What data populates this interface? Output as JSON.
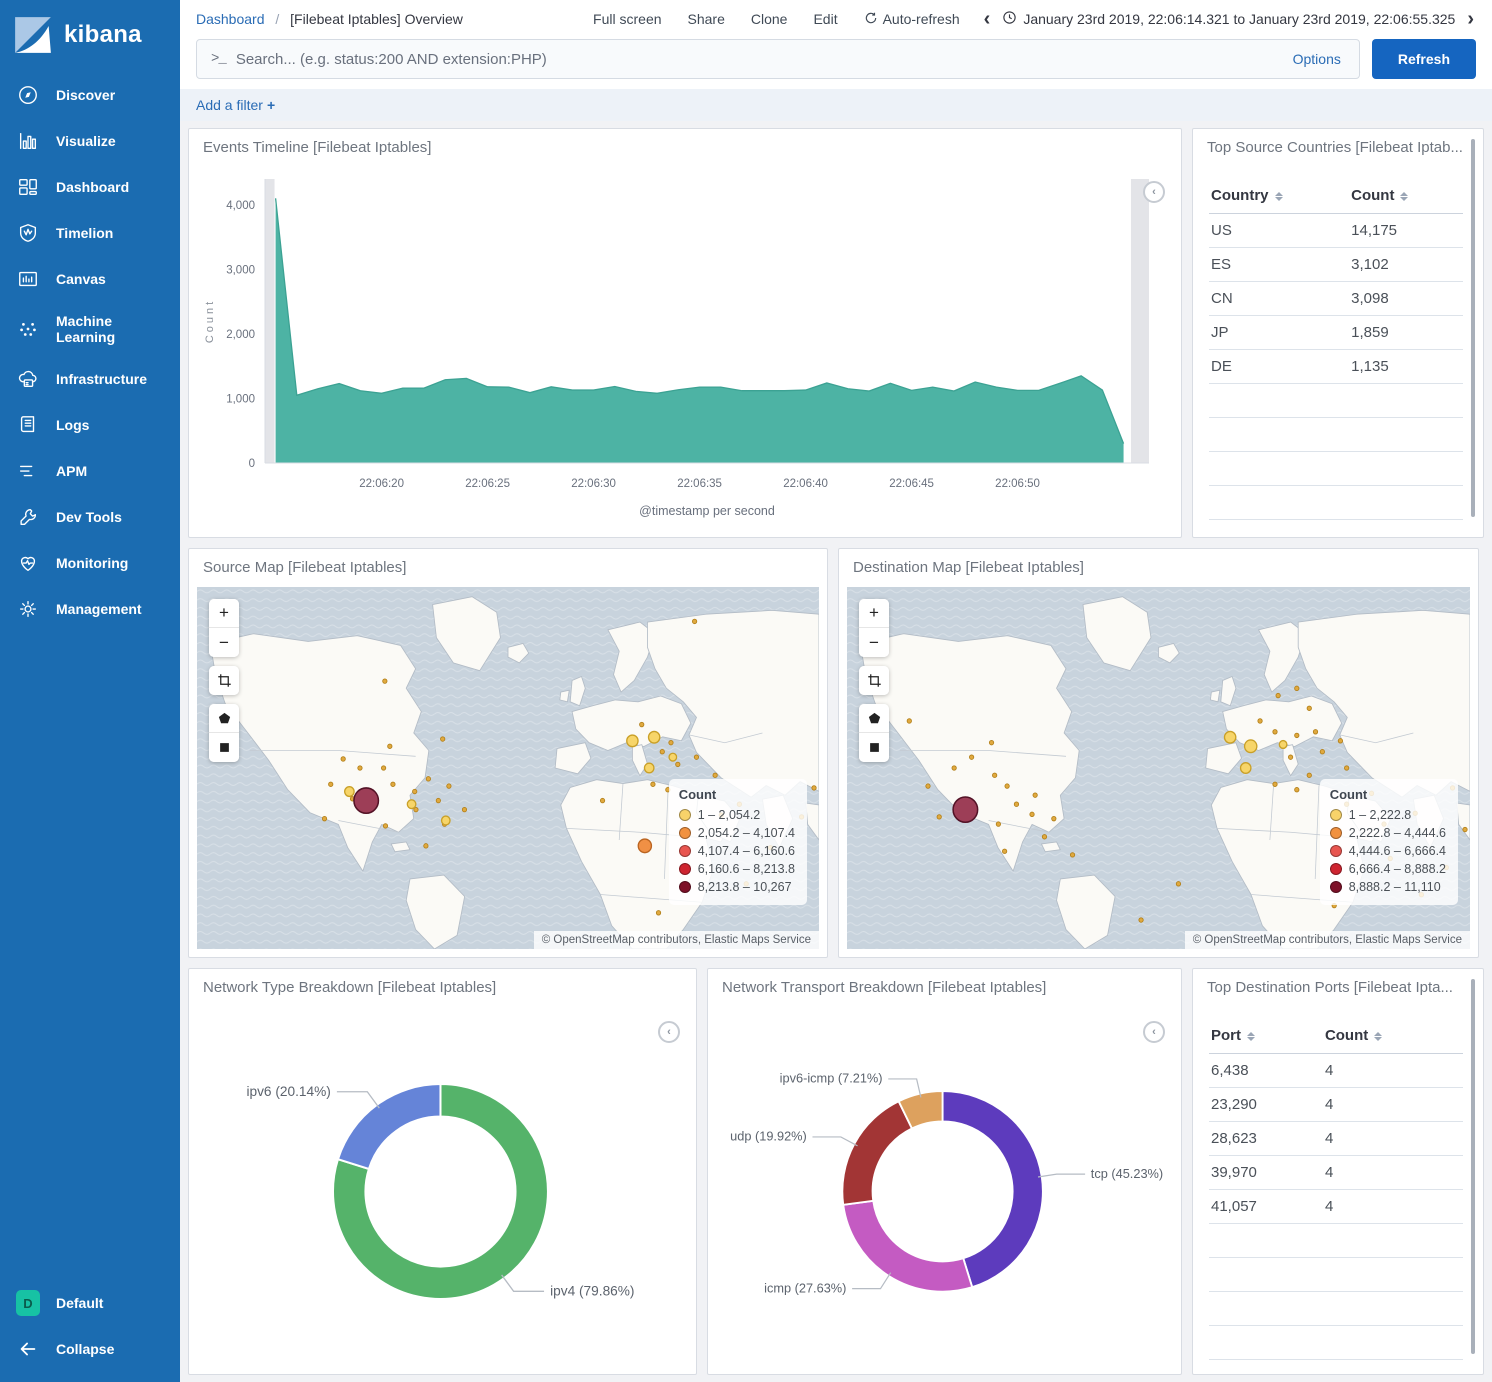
{
  "app": {
    "logo_text": "kibana"
  },
  "sidebar": {
    "items": [
      {
        "label": "Discover",
        "icon": "discover"
      },
      {
        "label": "Visualize",
        "icon": "visualize"
      },
      {
        "label": "Dashboard",
        "icon": "dashboard"
      },
      {
        "label": "Timelion",
        "icon": "timelion"
      },
      {
        "label": "Canvas",
        "icon": "canvas"
      },
      {
        "label": "Machine Learning",
        "icon": "machine-learning"
      },
      {
        "label": "Infrastructure",
        "icon": "infrastructure"
      },
      {
        "label": "Logs",
        "icon": "logs"
      },
      {
        "label": "APM",
        "icon": "apm"
      },
      {
        "label": "Dev Tools",
        "icon": "dev-tools"
      },
      {
        "label": "Monitoring",
        "icon": "monitoring"
      },
      {
        "label": "Management",
        "icon": "management"
      }
    ],
    "footer": {
      "default_label": "Default",
      "default_badge": "D",
      "collapse_label": "Collapse"
    }
  },
  "topbar": {
    "breadcrumb": {
      "root": "Dashboard",
      "separator": "/",
      "current": "[Filebeat Iptables] Overview"
    },
    "menu": [
      "Full screen",
      "Share",
      "Clone",
      "Edit"
    ],
    "auto_refresh_label": "Auto-refresh",
    "time_range": "January 23rd 2019, 22:06:14.321 to January 23rd 2019, 22:06:55.325",
    "prev_arrow": "‹",
    "next_arrow": "›",
    "search": {
      "placeholder": "Search... (e.g. status:200 AND extension:PHP)",
      "prompt": ">_",
      "options_label": "Options",
      "refresh_label": "Refresh"
    }
  },
  "filter_bar": {
    "add_filter_label": "Add a filter",
    "plus": "+"
  },
  "panels": {
    "events_timeline": {
      "title": "Events Timeline [Filebeat Iptables]"
    },
    "top_source_countries": {
      "title": "Top Source Countries [Filebeat Iptab...",
      "columns": [
        "Country",
        "Count"
      ],
      "rows": [
        [
          "US",
          "14,175"
        ],
        [
          "ES",
          "3,102"
        ],
        [
          "CN",
          "3,098"
        ],
        [
          "JP",
          "1,859"
        ],
        [
          "DE",
          "1,135"
        ]
      ],
      "empty_rows": 4
    },
    "source_map": {
      "title": "Source Map [Filebeat Iptables]",
      "legend_title": "Count",
      "legend": [
        {
          "range": "1 – 2,054.2",
          "color": "#f8d36a"
        },
        {
          "range": "2,054.2 – 4,107.4",
          "color": "#f1913f"
        },
        {
          "range": "4,107.4 – 6,160.6",
          "color": "#e8554f"
        },
        {
          "range": "6,160.6 – 8,213.8",
          "color": "#ce2430"
        },
        {
          "range": "8,213.8 – 10,267",
          "color": "#7d1128"
        }
      ],
      "attribution": "© OpenStreetMap contributors, Elastic Maps Service",
      "controls": [
        "zoom-in",
        "zoom-out",
        "crop",
        "polygon",
        "rectangle"
      ]
    },
    "destination_map": {
      "title": "Destination Map [Filebeat Iptables]",
      "legend_title": "Count",
      "legend": [
        {
          "range": "1 – 2,222.8",
          "color": "#f8d36a"
        },
        {
          "range": "2,222.8 – 4,444.6",
          "color": "#f1913f"
        },
        {
          "range": "4,444.6 – 6,666.4",
          "color": "#e8554f"
        },
        {
          "range": "6,666.4 – 8,888.2",
          "color": "#ce2430"
        },
        {
          "range": "8,888.2 – 11,110",
          "color": "#7d1128"
        }
      ],
      "attribution": "© OpenStreetMap contributors, Elastic Maps Service",
      "controls": [
        "zoom-in",
        "zoom-out",
        "crop",
        "polygon",
        "rectangle"
      ]
    },
    "network_type": {
      "title": "Network Type Breakdown [Filebeat Iptables]"
    },
    "network_transport": {
      "title": "Network Transport Breakdown [Filebeat Iptables]"
    },
    "top_destination_ports": {
      "title": "Top Destination Ports [Filebeat Ipta...",
      "columns": [
        "Port",
        "Count"
      ],
      "rows": [
        [
          "6,438",
          "4"
        ],
        [
          "23,290",
          "4"
        ],
        [
          "28,623",
          "4"
        ],
        [
          "39,970",
          "4"
        ],
        [
          "41,057",
          "4"
        ]
      ],
      "empty_rows": 4
    }
  },
  "chart_data": {
    "events_timeline": {
      "type": "area",
      "title": "Events Timeline [Filebeat Iptables]",
      "xlabel": "@timestamp per second",
      "ylabel": "Count",
      "color": "#4db3a4",
      "stroke": "#3ca293",
      "x_domain_seconds": [
        14.5,
        56.2
      ],
      "x_start_second": 15,
      "values": [
        4100,
        1050,
        1150,
        1230,
        1120,
        1080,
        1160,
        1160,
        1290,
        1310,
        1180,
        1175,
        1090,
        1180,
        1130,
        1130,
        1185,
        1110,
        1080,
        1135,
        1175,
        1175,
        1120,
        1120,
        1120,
        1130,
        1240,
        1150,
        1115,
        1235,
        1125,
        1175,
        1115,
        1255,
        1175,
        1125,
        1125,
        1235,
        1350,
        1130,
        300
      ],
      "ylim": [
        0,
        4400
      ],
      "y_ticks": [
        {
          "v": 0,
          "label": "0"
        },
        {
          "v": 1000,
          "label": "1,000"
        },
        {
          "v": 2000,
          "label": "2,000"
        },
        {
          "v": 3000,
          "label": "3,000"
        },
        {
          "v": 4000,
          "label": "4,000"
        }
      ],
      "x_ticks": [
        {
          "sec": 20,
          "label": "22:06:20"
        },
        {
          "sec": 25,
          "label": "22:06:25"
        },
        {
          "sec": 30,
          "label": "22:06:30"
        },
        {
          "sec": 35,
          "label": "22:06:35"
        },
        {
          "sec": 40,
          "label": "22:06:40"
        },
        {
          "sec": 45,
          "label": "22:06:45"
        },
        {
          "sec": 50,
          "label": "22:06:50"
        }
      ],
      "partial_bars": [
        [
          14.5,
          14.95
        ],
        [
          55.35,
          56.2
        ]
      ],
      "grid": false
    },
    "network_type": {
      "type": "pie",
      "title": "Network Type Breakdown [Filebeat Iptables]",
      "slices": [
        {
          "label": "ipv4",
          "pct": 79.86,
          "display": "ipv4 (79.86%)",
          "color": "#55b36a"
        },
        {
          "label": "ipv6",
          "pct": 20.14,
          "display": "ipv6 (20.14%)",
          "color": "#6584d8"
        }
      ]
    },
    "network_transport": {
      "type": "pie",
      "title": "Network Transport Breakdown [Filebeat Iptables]",
      "slices": [
        {
          "label": "tcp",
          "pct": 45.23,
          "display": "tcp (45.23%)",
          "color": "#5d3bbd"
        },
        {
          "label": "icmp",
          "pct": 27.63,
          "display": "icmp (27.63%)",
          "color": "#c45bc2"
        },
        {
          "label": "udp",
          "pct": 19.92,
          "display": "udp (19.92%)",
          "color": "#a23535"
        },
        {
          "label": "ipv6-icmp",
          "pct": 7.21,
          "display": "ipv6-icmp (7.21%)",
          "color": "#dda15e"
        }
      ]
    },
    "source_map": {
      "type": "map",
      "large_markers": [
        [
          0.272,
          0.59,
          13
        ]
      ],
      "orange_markers": [
        [
          0.72,
          0.715,
          7
        ]
      ],
      "medium_markers": [
        [
          0.7,
          0.425,
          6
        ],
        [
          0.735,
          0.415,
          6
        ],
        [
          0.727,
          0.5,
          5
        ],
        [
          0.245,
          0.565,
          5
        ],
        [
          0.345,
          0.6,
          4.5
        ],
        [
          0.4,
          0.645,
          4.5
        ],
        [
          0.765,
          0.47,
          4
        ]
      ],
      "small_markers": [
        [
          0.215,
          0.545
        ],
        [
          0.205,
          0.64
        ],
        [
          0.235,
          0.475
        ],
        [
          0.262,
          0.5
        ],
        [
          0.3,
          0.5
        ],
        [
          0.315,
          0.545
        ],
        [
          0.35,
          0.565
        ],
        [
          0.352,
          0.615
        ],
        [
          0.303,
          0.66
        ],
        [
          0.25,
          0.585
        ],
        [
          0.372,
          0.53
        ],
        [
          0.405,
          0.55
        ],
        [
          0.388,
          0.59
        ],
        [
          0.43,
          0.615
        ],
        [
          0.398,
          0.655
        ],
        [
          0.368,
          0.715
        ],
        [
          0.31,
          0.44
        ],
        [
          0.395,
          0.42
        ],
        [
          0.302,
          0.26
        ],
        [
          0.8,
          0.095
        ],
        [
          0.715,
          0.38
        ],
        [
          0.748,
          0.455
        ],
        [
          0.762,
          0.43
        ],
        [
          0.773,
          0.49
        ],
        [
          0.733,
          0.545
        ],
        [
          0.757,
          0.56
        ],
        [
          0.803,
          0.47
        ],
        [
          0.833,
          0.52
        ],
        [
          0.843,
          0.63
        ],
        [
          0.872,
          0.6
        ],
        [
          0.922,
          0.72
        ],
        [
          0.972,
          0.635
        ],
        [
          0.883,
          0.82
        ],
        [
          0.742,
          0.9
        ],
        [
          0.992,
          0.555
        ],
        [
          0.652,
          0.59
        ]
      ]
    },
    "destination_map": {
      "type": "map",
      "large_markers": [
        [
          0.19,
          0.615,
          13
        ]
      ],
      "orange_markers": [],
      "medium_markers": [
        [
          0.615,
          0.415,
          6
        ],
        [
          0.648,
          0.44,
          6.5
        ],
        [
          0.64,
          0.5,
          5.5
        ],
        [
          0.7,
          0.435,
          4
        ]
      ],
      "small_markers": [
        [
          0.13,
          0.55
        ],
        [
          0.148,
          0.635
        ],
        [
          0.172,
          0.5
        ],
        [
          0.2,
          0.47
        ],
        [
          0.237,
          0.52
        ],
        [
          0.257,
          0.55
        ],
        [
          0.272,
          0.6
        ],
        [
          0.243,
          0.655
        ],
        [
          0.302,
          0.575
        ],
        [
          0.297,
          0.628
        ],
        [
          0.332,
          0.64
        ],
        [
          0.317,
          0.69
        ],
        [
          0.253,
          0.73
        ],
        [
          0.362,
          0.74
        ],
        [
          0.232,
          0.43
        ],
        [
          0.1,
          0.37
        ],
        [
          0.663,
          0.37
        ],
        [
          0.687,
          0.4
        ],
        [
          0.712,
          0.47
        ],
        [
          0.722,
          0.41
        ],
        [
          0.752,
          0.4
        ],
        [
          0.763,
          0.455
        ],
        [
          0.792,
          0.425
        ],
        [
          0.802,
          0.5
        ],
        [
          0.742,
          0.52
        ],
        [
          0.687,
          0.545
        ],
        [
          0.722,
          0.56
        ],
        [
          0.692,
          0.3
        ],
        [
          0.722,
          0.28
        ],
        [
          0.742,
          0.335
        ],
        [
          0.802,
          0.6
        ],
        [
          0.842,
          0.57
        ],
        [
          0.862,
          0.655
        ],
        [
          0.912,
          0.625
        ],
        [
          0.872,
          0.75
        ],
        [
          0.782,
          0.88
        ],
        [
          0.922,
          0.85
        ],
        [
          0.972,
          0.555
        ],
        [
          0.992,
          0.67
        ],
        [
          0.962,
          0.775
        ],
        [
          0.532,
          0.82
        ],
        [
          0.472,
          0.92
        ]
      ]
    }
  }
}
